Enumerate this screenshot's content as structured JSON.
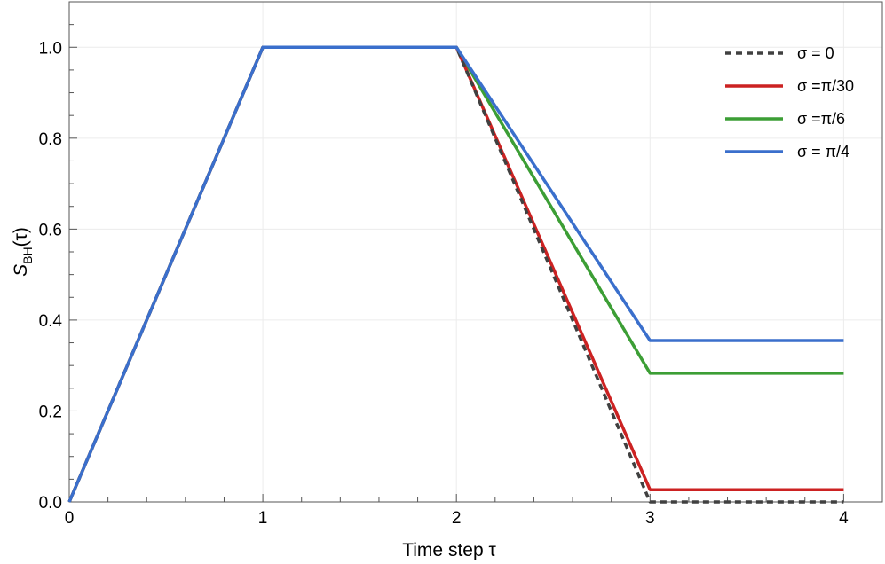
{
  "chart_data": {
    "type": "line",
    "title": "",
    "xlabel": "Time step τ",
    "ylabel": {
      "main": "S",
      "sub": "BH",
      "suffix": "(τ)"
    },
    "xlim": [
      0,
      4.2
    ],
    "ylim": [
      0,
      1.1
    ],
    "xticks": [
      0,
      1,
      2,
      3,
      4
    ],
    "xtick_labels": [
      "0",
      "1",
      "2",
      "3",
      "4"
    ],
    "yticks": [
      0,
      0.2,
      0.4,
      0.6,
      0.8,
      1.0
    ],
    "ytick_labels": [
      "0.0",
      "0.2",
      "0.4",
      "0.6",
      "0.8",
      "1.0"
    ],
    "grid": true,
    "legend_position": "top-right",
    "series": [
      {
        "name": "σ = 0",
        "color": "#404040",
        "style": "dashed",
        "points": [
          [
            0,
            0
          ],
          [
            1,
            1
          ],
          [
            2,
            1
          ],
          [
            3,
            0
          ],
          [
            4,
            0
          ]
        ]
      },
      {
        "name": "σ =π/30",
        "color": "#cc2222",
        "style": "solid",
        "points": [
          [
            0,
            0
          ],
          [
            1,
            1
          ],
          [
            2,
            1
          ],
          [
            3,
            0.027
          ],
          [
            4,
            0.027
          ]
        ]
      },
      {
        "name": "σ =π/6",
        "color": "#3c9e35",
        "style": "solid",
        "points": [
          [
            0,
            0
          ],
          [
            1,
            1
          ],
          [
            2,
            1
          ],
          [
            3,
            0.283
          ],
          [
            4,
            0.283
          ]
        ]
      },
      {
        "name": "σ = π/4",
        "color": "#3a6fcc",
        "style": "solid",
        "points": [
          [
            0,
            0
          ],
          [
            1,
            1
          ],
          [
            2,
            1
          ],
          [
            3,
            0.355
          ],
          [
            4,
            0.355
          ]
        ]
      }
    ]
  }
}
